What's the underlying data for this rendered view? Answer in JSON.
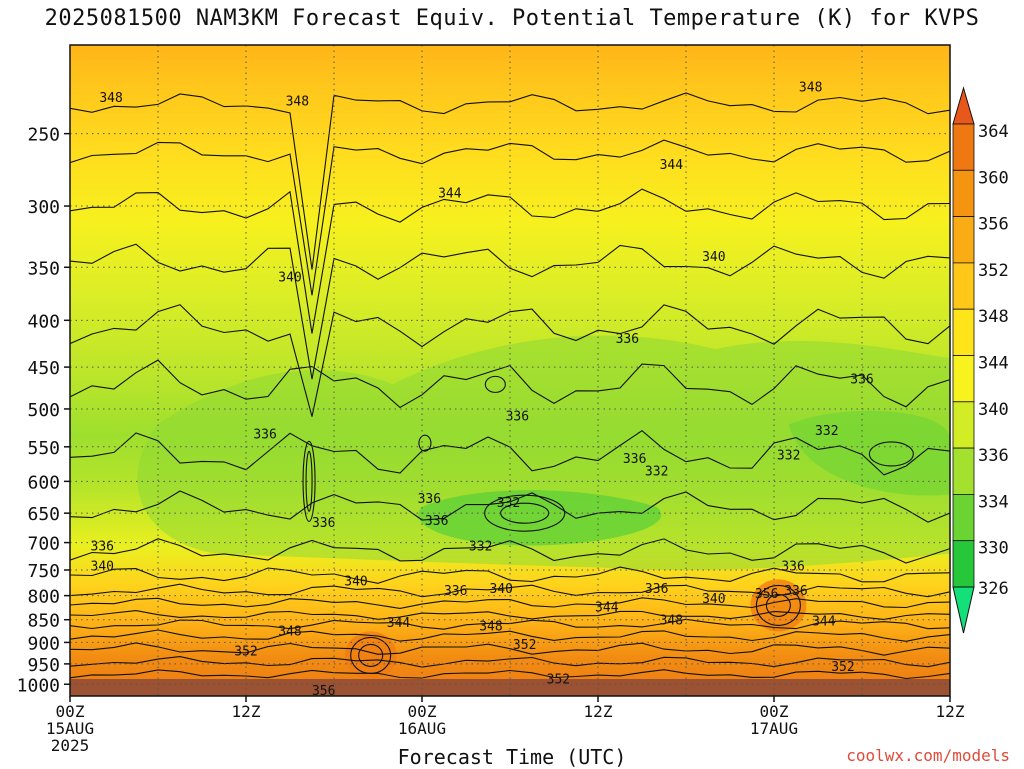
{
  "chart_data": {
    "type": "heatmap",
    "title": "2025081500 NAM3KM Forecast Equiv. Potential Temperature (K) for KVPS",
    "xlabel": "Forecast Time (UTC)",
    "ylabel": "",
    "x_ticks": [
      {
        "hour": 0,
        "lines": [
          "00Z",
          "15AUG",
          "2025"
        ]
      },
      {
        "hour": 12,
        "lines": [
          "12Z"
        ]
      },
      {
        "hour": 24,
        "lines": [
          "00Z",
          "16AUG"
        ]
      },
      {
        "hour": 36,
        "lines": [
          "12Z"
        ]
      },
      {
        "hour": 48,
        "lines": [
          "00Z",
          "17AUG"
        ]
      },
      {
        "hour": 60,
        "lines": [
          "12Z"
        ]
      }
    ],
    "y_ticks": [
      250,
      300,
      350,
      400,
      450,
      500,
      550,
      600,
      650,
      700,
      750,
      800,
      850,
      900,
      950,
      1000
    ],
    "ylim": [
      1030,
      200
    ],
    "xlim": [
      0,
      60
    ],
    "colorbar": {
      "labels": [
        364,
        360,
        356,
        352,
        348,
        344,
        340,
        336,
        334,
        330,
        326
      ],
      "colors": [
        "#e8581a",
        "#f07812",
        "#f59410",
        "#faac14",
        "#ffc818",
        "#ffe41a",
        "#f8f21e",
        "#d2ec26",
        "#a4e02e",
        "#6cd432",
        "#26c83a",
        "#14e07a"
      ]
    },
    "contour_labels": [
      {
        "text": "348",
        "x": 2.8,
        "p": 228
      },
      {
        "text": "348",
        "x": 15.5,
        "p": 230
      },
      {
        "text": "348",
        "x": 50.5,
        "p": 222
      },
      {
        "text": "344",
        "x": 25.9,
        "p": 290
      },
      {
        "text": "344",
        "x": 41,
        "p": 270
      },
      {
        "text": "340",
        "x": 15,
        "p": 358
      },
      {
        "text": "340",
        "x": 43.9,
        "p": 340
      },
      {
        "text": "336",
        "x": 13.3,
        "p": 532
      },
      {
        "text": "336",
        "x": 30.5,
        "p": 508
      },
      {
        "text": "336",
        "x": 38,
        "p": 418
      },
      {
        "text": "336",
        "x": 54,
        "p": 463
      },
      {
        "text": "336",
        "x": 38.5,
        "p": 566
      },
      {
        "text": "336",
        "x": 24.5,
        "p": 626
      },
      {
        "text": "336",
        "x": 17.3,
        "p": 665
      },
      {
        "text": "336",
        "x": 25,
        "p": 661
      },
      {
        "text": "336",
        "x": 2.2,
        "p": 705
      },
      {
        "text": "336",
        "x": 49.3,
        "p": 742
      },
      {
        "text": "336",
        "x": 49.5,
        "p": 789
      },
      {
        "text": "336",
        "x": 40,
        "p": 785
      },
      {
        "text": "336",
        "x": 26.3,
        "p": 789
      },
      {
        "text": "332",
        "x": 40,
        "p": 584
      },
      {
        "text": "332",
        "x": 29.9,
        "p": 632
      },
      {
        "text": "332",
        "x": 49,
        "p": 561
      },
      {
        "text": "332",
        "x": 51.6,
        "p": 527
      },
      {
        "text": "332",
        "x": 28,
        "p": 705
      },
      {
        "text": "340",
        "x": 2.2,
        "p": 742
      },
      {
        "text": "340",
        "x": 19.5,
        "p": 770
      },
      {
        "text": "340",
        "x": 29.4,
        "p": 785
      },
      {
        "text": "340",
        "x": 43.9,
        "p": 805
      },
      {
        "text": "344",
        "x": 22.4,
        "p": 855
      },
      {
        "text": "344",
        "x": 36.6,
        "p": 822
      },
      {
        "text": "344",
        "x": 51.4,
        "p": 852
      },
      {
        "text": "348",
        "x": 15,
        "p": 873
      },
      {
        "text": "348",
        "x": 28.7,
        "p": 863
      },
      {
        "text": "348",
        "x": 41,
        "p": 850
      },
      {
        "text": "352",
        "x": 12,
        "p": 918
      },
      {
        "text": "352",
        "x": 31,
        "p": 904
      },
      {
        "text": "352",
        "x": 33.3,
        "p": 985
      },
      {
        "text": "352",
        "x": 52.7,
        "p": 955
      },
      {
        "text": "356",
        "x": 47.5,
        "p": 795
      },
      {
        "text": "356",
        "x": 17.3,
        "p": 1015
      }
    ]
  },
  "watermark": "coolwx.com/models"
}
